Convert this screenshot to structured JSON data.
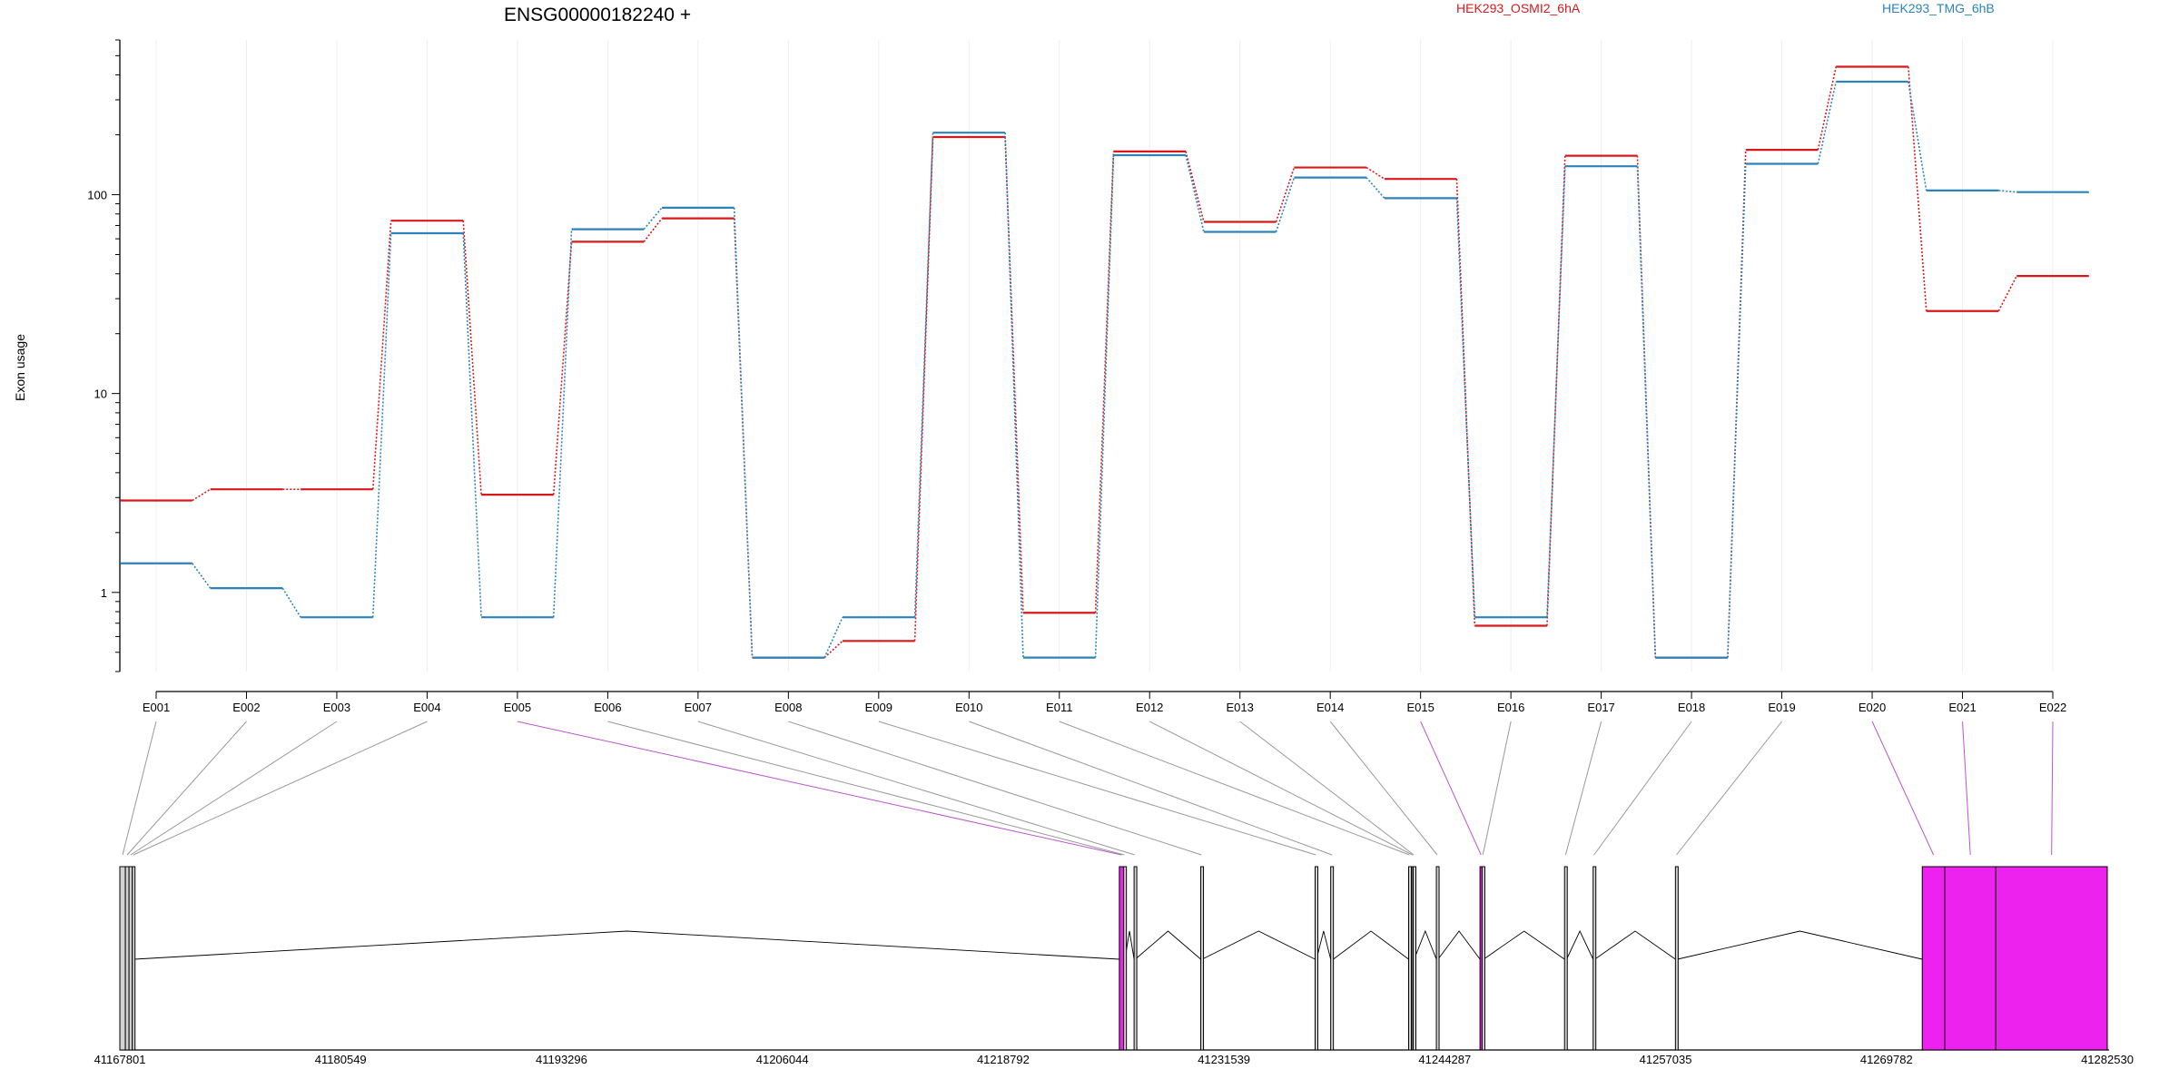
{
  "chart_data": {
    "type": "line",
    "title": "ENSG00000182240 +",
    "ylabel": "Exon usage",
    "yscale": "log",
    "ylim": [
      0.4,
      600
    ],
    "yticks": [
      1,
      10,
      100
    ],
    "ytick_labels": [
      "1",
      "10",
      "100"
    ],
    "grid": "vertical",
    "legend_position": "top-right",
    "categories": [
      "E001",
      "E002",
      "E003",
      "E004",
      "E005",
      "E006",
      "E007",
      "E008",
      "E009",
      "E010",
      "E011",
      "E012",
      "E013",
      "E014",
      "E015",
      "E016",
      "E017",
      "E018",
      "E019",
      "E020",
      "E021",
      "E022"
    ],
    "series": [
      {
        "name": "HEK293_OSMI2_6hA",
        "color": "#d7191c",
        "values": [
          2.9,
          3.3,
          3.3,
          74,
          3.1,
          58,
          76,
          0.47,
          0.57,
          195,
          0.79,
          165,
          73,
          137,
          120,
          0.68,
          157,
          0.47,
          168,
          440,
          26,
          39
        ]
      },
      {
        "name": "HEK293_TMG_6hB",
        "color": "#2b83ba",
        "values": [
          1.4,
          1.05,
          0.75,
          64,
          0.75,
          67,
          86,
          0.47,
          0.75,
          205,
          0.47,
          158,
          65,
          122,
          96,
          0.75,
          139,
          0.47,
          143,
          370,
          105,
          103
        ]
      }
    ],
    "gene_model": {
      "coordinate_ticks": [
        "41167801",
        "41180549",
        "41193296",
        "41206044",
        "41218792",
        "41231539",
        "41244287",
        "41257035",
        "41269782",
        "41282530"
      ],
      "coord_start": 41167801,
      "coord_end": 41282530,
      "exons": [
        {
          "id": "E001",
          "start": 41167801,
          "end": 41168120,
          "highlight": false
        },
        {
          "id": "E002",
          "start": 41168120,
          "end": 41168330,
          "highlight": false
        },
        {
          "id": "E003",
          "start": 41168330,
          "end": 41168520,
          "highlight": false
        },
        {
          "id": "E004",
          "start": 41168520,
          "end": 41168640,
          "highlight": false
        },
        {
          "id": "E005",
          "start": 41225500,
          "end": 41225750,
          "highlight": true
        },
        {
          "id": "E006",
          "start": 41225750,
          "end": 41225820,
          "highlight": false
        },
        {
          "id": "E007",
          "start": 41226350,
          "end": 41226420,
          "highlight": false
        },
        {
          "id": "E008",
          "start": 41230200,
          "end": 41230280,
          "highlight": false
        },
        {
          "id": "E009",
          "start": 41236800,
          "end": 41236880,
          "highlight": false
        },
        {
          "id": "E010",
          "start": 41237700,
          "end": 41237850,
          "highlight": false
        },
        {
          "id": "E011",
          "start": 41242200,
          "end": 41242280,
          "highlight": false
        },
        {
          "id": "E012",
          "start": 41242380,
          "end": 41242460,
          "highlight": false
        },
        {
          "id": "E013",
          "start": 41242460,
          "end": 41242520,
          "highlight": false
        },
        {
          "id": "E014",
          "start": 41243800,
          "end": 41243900,
          "highlight": false
        },
        {
          "id": "E015",
          "start": 41246320,
          "end": 41246440,
          "highlight": true
        },
        {
          "id": "E016",
          "start": 41246440,
          "end": 41246530,
          "highlight": false
        },
        {
          "id": "E017",
          "start": 41251200,
          "end": 41251320,
          "highlight": false
        },
        {
          "id": "E018",
          "start": 41252850,
          "end": 41252950,
          "highlight": false
        },
        {
          "id": "E019",
          "start": 41257600,
          "end": 41257720,
          "highlight": false
        },
        {
          "id": "E020",
          "start": 41271850,
          "end": 41273150,
          "highlight": true
        },
        {
          "id": "E021",
          "start": 41273150,
          "end": 41276100,
          "highlight": true
        },
        {
          "id": "E022",
          "start": 41276100,
          "end": 41282530,
          "highlight": true
        }
      ],
      "introns": [
        {
          "from": 41168640,
          "to": 41225500
        },
        {
          "from": 41225820,
          "to": 41226350
        },
        {
          "from": 41226420,
          "to": 41230200
        },
        {
          "from": 41230280,
          "to": 41236800
        },
        {
          "from": 41236880,
          "to": 41237700
        },
        {
          "from": 41237850,
          "to": 41242200
        },
        {
          "from": 41242520,
          "to": 41243800
        },
        {
          "from": 41243900,
          "to": 41246320
        },
        {
          "from": 41246530,
          "to": 41251200
        },
        {
          "from": 41251320,
          "to": 41252850
        },
        {
          "from": 41252950,
          "to": 41257600
        },
        {
          "from": 41257720,
          "to": 41271850
        }
      ]
    },
    "colors": {
      "highlight_exon": "#ee22ee",
      "normal_exon": "#d3d3d3",
      "connector": "#999999",
      "connector_highlight": "#bb55cc",
      "grid": "#eeeeee"
    }
  }
}
